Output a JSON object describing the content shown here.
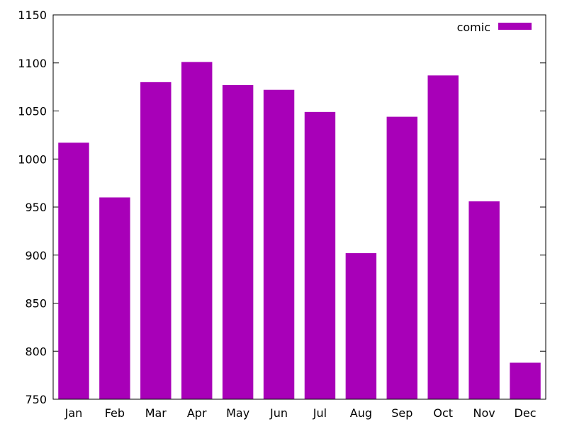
{
  "chart_data": {
    "type": "bar",
    "title": "",
    "xlabel": "",
    "ylabel": "",
    "categories": [
      "Jan",
      "Feb",
      "Mar",
      "Apr",
      "May",
      "Jun",
      "Jul",
      "Aug",
      "Sep",
      "Oct",
      "Nov",
      "Dec"
    ],
    "series": [
      {
        "name": "comic",
        "color": "#a800b8",
        "values": [
          1017,
          960,
          1080,
          1101,
          1077,
          1072,
          1049,
          902,
          1044,
          1087,
          956,
          788
        ]
      }
    ],
    "ylim": [
      750,
      1150
    ],
    "yticks": [
      750,
      800,
      850,
      900,
      950,
      1000,
      1050,
      1100,
      1150
    ],
    "grid": false,
    "legend_position": "top-right"
  }
}
